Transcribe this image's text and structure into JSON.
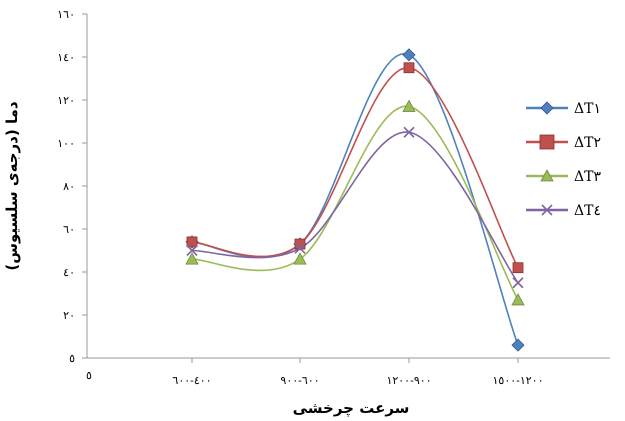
{
  "chart_data": {
    "type": "line",
    "smooth": true,
    "title": "",
    "xlabel": "سرعت چرخشی",
    "ylabel": "دما (درجه‌ی سلسیوس)",
    "origin_label": "٥",
    "categories": [
      "٤٠٠-٦٠٠",
      "٦٠٠-٩٠٠",
      "٩٠٠-١٢٠٠",
      "١٢٠٠-١٥٠٠"
    ],
    "ylim": [
      0,
      160
    ],
    "yticks": [
      0,
      20,
      40,
      60,
      80,
      100,
      120,
      140,
      160
    ],
    "ytick_labels": [
      "٥",
      "٢٠",
      "٤٠",
      "٦٠",
      "٨٠",
      "١٠٠",
      "١٢٠",
      "١٤٠",
      "١٦٠"
    ],
    "grid": false,
    "legend_position": "right",
    "series": [
      {
        "name": "ΔT١",
        "values": [
          54,
          53,
          141,
          6
        ],
        "color": "#4f81bd",
        "marker": "diamond",
        "marker_fill": "#4f81bd"
      },
      {
        "name": "ΔT٢",
        "values": [
          54,
          53,
          135,
          42
        ],
        "color": "#c0504d",
        "marker": "square",
        "marker_fill": "#c0504d"
      },
      {
        "name": "ΔT٣",
        "values": [
          46,
          46,
          117,
          27
        ],
        "color": "#9bbb59",
        "marker": "triangle",
        "marker_fill": "#9bbb59"
      },
      {
        "name": "ΔT٤",
        "values": [
          50,
          51,
          105,
          35
        ],
        "color": "#8064a2",
        "marker": "x",
        "marker_fill": "none"
      }
    ]
  }
}
